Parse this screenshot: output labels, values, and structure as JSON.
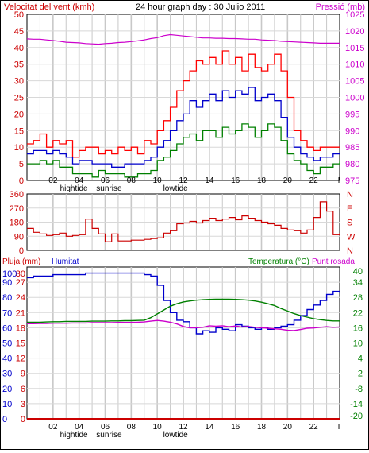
{
  "header": {
    "wind_label": "Velocitat del vent (kmh)",
    "title": "24 hour graph day : 30 Julio 2011",
    "pressure_label": "Pressió (mb)"
  },
  "panel3_labels": {
    "rain_label": "Pluja (mm)",
    "humidity_label": "Humitat",
    "temp_label": "Temperatura (°C)",
    "dew_label": "Punt rosada"
  },
  "x_axis": {
    "hours": [
      "02",
      "04",
      "06",
      "08",
      "10",
      "12",
      "14",
      "16",
      "18",
      "20",
      "22",
      "I"
    ],
    "events": [
      {
        "label": "hightide",
        "hour": 3.6
      },
      {
        "label": "sunrise",
        "hour": 6.3
      },
      {
        "label": "lowtide",
        "hour": 11.4
      }
    ]
  },
  "colors": {
    "wind_gust": "#ff0000",
    "wind_avg": "#0000cc",
    "wind_min": "#008000",
    "pressure": "#cc00cc",
    "direction": "#cc0000",
    "humidity": "#0000cc",
    "temperature": "#008000",
    "dew_point": "#cc00cc",
    "rain": "#cc0000"
  },
  "chart_data": [
    {
      "type": "line",
      "x_unit": "hour",
      "x": [
        0,
        0.5,
        1,
        1.5,
        2,
        2.5,
        3,
        3.5,
        4,
        4.5,
        5,
        5.5,
        6,
        6.5,
        7,
        7.5,
        8,
        8.5,
        9,
        9.5,
        10,
        10.5,
        11,
        11.5,
        12,
        12.5,
        13,
        13.5,
        14,
        14.5,
        15,
        15.5,
        16,
        16.5,
        17,
        17.5,
        18,
        18.5,
        19,
        19.5,
        20,
        20.5,
        21,
        21.5,
        22,
        22.5,
        23,
        23.5,
        24
      ],
      "series": [
        {
          "axis": "left",
          "values": [
            11,
            12,
            14,
            10,
            12,
            11,
            12,
            7,
            9,
            10,
            10,
            8,
            9,
            8,
            10,
            9,
            10,
            8,
            12,
            11,
            15,
            18,
            22,
            27,
            30,
            33,
            36,
            35,
            37,
            35,
            39,
            35,
            37,
            33,
            38,
            34,
            33,
            35,
            38,
            33,
            25,
            15,
            12,
            10,
            9,
            10,
            10,
            10,
            10
          ]
        },
        {
          "axis": "left",
          "values": [
            8,
            9,
            9,
            8,
            9,
            8,
            7,
            5,
            6,
            6,
            5,
            5,
            5,
            4,
            4,
            5,
            5,
            5,
            6,
            7,
            10,
            12,
            15,
            18,
            20,
            24,
            22,
            24,
            26,
            24,
            27,
            25,
            27,
            26,
            28,
            24,
            25,
            26,
            24,
            19,
            13,
            10,
            8,
            7,
            6,
            7,
            7,
            8,
            8
          ]
        },
        {
          "axis": "left",
          "values": [
            5,
            5,
            6,
            5,
            6,
            4,
            4,
            2,
            2,
            2,
            1,
            3,
            2,
            2,
            2,
            1,
            1,
            2,
            2,
            3,
            6,
            7,
            9,
            11,
            13,
            14,
            12,
            15,
            15,
            13,
            16,
            14,
            15,
            17,
            16,
            13,
            15,
            17,
            16,
            12,
            8,
            6,
            5,
            3,
            2,
            4,
            4,
            5,
            6
          ]
        },
        {
          "axis": "right",
          "values": [
            1017.6,
            1017.5,
            1017.5,
            1017.3,
            1017.1,
            1016.9,
            1016.6,
            1016.5,
            1016.4,
            1016.2,
            1016.1,
            1016.0,
            1016.2,
            1016.3,
            1016.5,
            1016.6,
            1016.8,
            1017.0,
            1017.3,
            1017.7,
            1018.0,
            1018.6,
            1018.9,
            1018.7,
            1018.5,
            1018.3,
            1018.1,
            1017.9,
            1017.9,
            1017.8,
            1017.8,
            1017.7,
            1017.7,
            1017.6,
            1017.5,
            1017.5,
            1017.3,
            1017.2,
            1017.1,
            1016.9,
            1016.8,
            1016.7,
            1016.6,
            1016.5,
            1016.4,
            1016.3,
            1016.3,
            1016.3,
            1016.3
          ]
        }
      ],
      "ylim_left": [
        0,
        50
      ],
      "yticks_left": [
        0,
        5,
        10,
        15,
        20,
        25,
        30,
        35,
        40,
        45,
        50
      ],
      "ylim_right": [
        975,
        1025
      ],
      "yticks_right": [
        975,
        980,
        985,
        990,
        995,
        1000,
        1005,
        1010,
        1015,
        1020,
        1025
      ],
      "grid": true
    },
    {
      "type": "line",
      "x_unit": "hour",
      "x": [
        0,
        0.5,
        1,
        1.5,
        2,
        2.5,
        3,
        3.5,
        4,
        4.5,
        5,
        5.5,
        6,
        6.5,
        7,
        7.5,
        8,
        8.5,
        9,
        9.5,
        10,
        10.5,
        11,
        11.5,
        12,
        12.5,
        13,
        13.5,
        14,
        14.5,
        15,
        15.5,
        16,
        16.5,
        17,
        17.5,
        18,
        18.5,
        19,
        19.5,
        20,
        20.5,
        21,
        21.5,
        22,
        22.5,
        23,
        23.5,
        24
      ],
      "series": [
        {
          "values": [
            140,
            115,
            105,
            95,
            100,
            110,
            90,
            95,
            100,
            200,
            140,
            105,
            55,
            105,
            60,
            60,
            65,
            65,
            70,
            75,
            80,
            110,
            125,
            170,
            175,
            185,
            175,
            190,
            205,
            190,
            200,
            210,
            195,
            220,
            205,
            190,
            180,
            170,
            160,
            140,
            130,
            125,
            110,
            130,
            210,
            310,
            250,
            100,
            110
          ]
        }
      ],
      "ylim": [
        0,
        360
      ],
      "yticks": [
        0,
        90,
        180,
        270,
        360
      ],
      "right_labels": [
        "N",
        "W",
        "S",
        "E",
        "N"
      ],
      "grid": true
    },
    {
      "type": "line",
      "x_unit": "hour",
      "x": [
        0,
        0.5,
        1,
        1.5,
        2,
        2.5,
        3,
        3.5,
        4,
        4.5,
        5,
        5.5,
        6,
        6.5,
        7,
        7.5,
        8,
        8.5,
        9,
        9.5,
        10,
        10.5,
        11,
        11.5,
        12,
        12.5,
        13,
        13.5,
        14,
        14.5,
        15,
        15.5,
        16,
        16.5,
        17,
        17.5,
        18,
        18.5,
        19,
        19.5,
        20,
        20.5,
        21,
        21.5,
        22,
        22.5,
        23,
        23.5,
        24
      ],
      "series": [
        {
          "axis": "left",
          "values": [
            93,
            94,
            94,
            94,
            95,
            95,
            95,
            95,
            95,
            96,
            96,
            96,
            96,
            96,
            96,
            96,
            96,
            96,
            95,
            94,
            88,
            78,
            70,
            65,
            64,
            60,
            56,
            58,
            57,
            60,
            59,
            58,
            62,
            61,
            60,
            59,
            60,
            59,
            60,
            61,
            62,
            65,
            68,
            72,
            75,
            78,
            82,
            84,
            83
          ]
        },
        {
          "axis": "right",
          "values": [
            18.2,
            18.2,
            18.2,
            18.3,
            18.4,
            18.4,
            18.5,
            18.5,
            18.5,
            18.5,
            18.6,
            18.6,
            18.6,
            18.7,
            18.7,
            18.8,
            18.8,
            18.9,
            19.0,
            20.0,
            21.5,
            23.0,
            24.5,
            25.5,
            26.2,
            26.6,
            26.9,
            27.1,
            27.2,
            27.3,
            27.3,
            27.3,
            27.2,
            27.1,
            26.9,
            26.6,
            26.1,
            25.5,
            24.8,
            23.6,
            22.6,
            21.6,
            20.8,
            20.2,
            19.6,
            19.2,
            18.9,
            18.7,
            18.7
          ]
        },
        {
          "axis": "right",
          "values": [
            17.6,
            17.6,
            17.7,
            17.7,
            17.8,
            17.8,
            17.8,
            17.9,
            17.9,
            17.9,
            18.0,
            18.0,
            18.0,
            18.0,
            18.1,
            18.1,
            18.1,
            18.2,
            18.3,
            18.6,
            18.9,
            18.6,
            18.2,
            17.5,
            16.5,
            16.0,
            16.0,
            16.2,
            16.8,
            16.6,
            16.8,
            16.4,
            16.7,
            16.3,
            16.5,
            16.2,
            16.0,
            15.8,
            15.6,
            15.4,
            15.0,
            14.9,
            15.3,
            15.8,
            15.9,
            16.2,
            16.4,
            16.2,
            16.3
          ]
        },
        {
          "axis": "left",
          "values": [
            0,
            0,
            0,
            0,
            0,
            0,
            0,
            0,
            0,
            0,
            0,
            0,
            0,
            0,
            0,
            0,
            0,
            0,
            0,
            0,
            0,
            0,
            0,
            0,
            0,
            0,
            0,
            0,
            0,
            0,
            0,
            0,
            0,
            0,
            0,
            0,
            0,
            0,
            0,
            0,
            0,
            0,
            0,
            0,
            0,
            0,
            0,
            0,
            0
          ]
        }
      ],
      "ylim_left": [
        0,
        100
      ],
      "yticks_left": [
        0,
        10,
        20,
        30,
        40,
        50,
        60,
        70,
        80,
        90,
        100
      ],
      "rain_ticks": [
        0,
        3,
        6,
        9,
        12,
        15,
        18,
        21,
        24,
        27,
        30
      ],
      "ylim_right": [
        -20,
        40
      ],
      "yticks_right": [
        -20,
        -14,
        -8,
        -2,
        4,
        10,
        16,
        22,
        28,
        34,
        40
      ],
      "grid": true
    }
  ]
}
